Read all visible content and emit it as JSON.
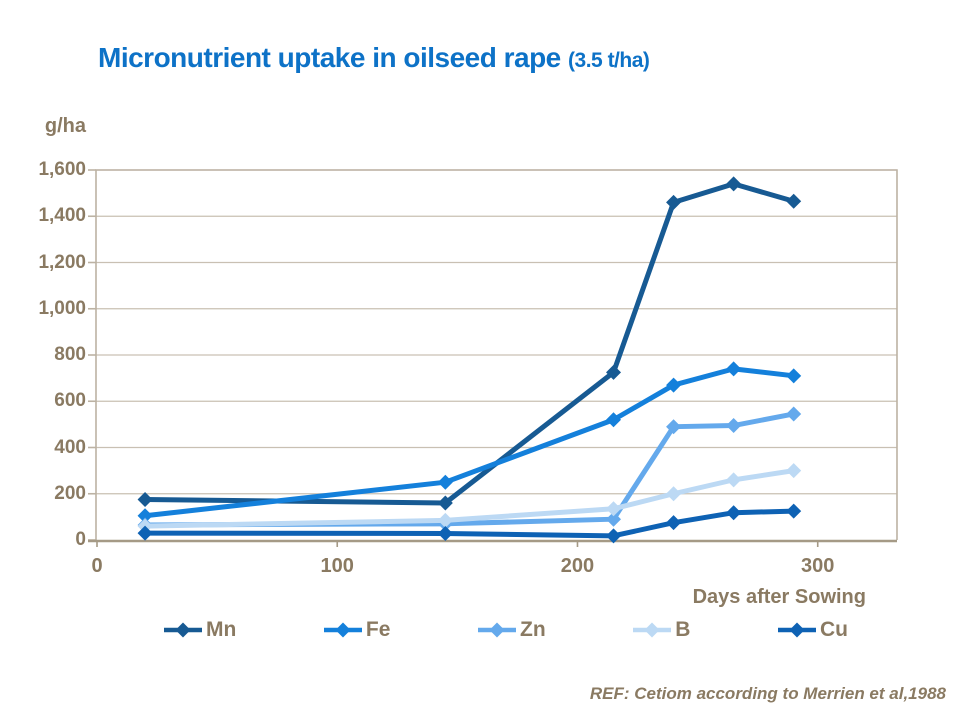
{
  "title": {
    "main": "Micronutrient uptake in oilseed rape",
    "suffix": "(3.5 t/ha)"
  },
  "footnote": "REF: Cetiom according to Merrien et al,1988",
  "chart_data": {
    "type": "line",
    "title": "Micronutrient uptake in oilseed rape (3.5 t/ha)",
    "xlabel": "Days after Sowing",
    "ylabel": "g/ha",
    "x": [
      20,
      145,
      215,
      240,
      265,
      290
    ],
    "series": [
      {
        "name": "Mn",
        "color": "#175a93",
        "values": [
          175,
          160,
          725,
          1460,
          1540,
          1465
        ]
      },
      {
        "name": "Fe",
        "color": "#1480db",
        "values": [
          105,
          250,
          520,
          670,
          740,
          710
        ]
      },
      {
        "name": "Zn",
        "color": "#64a9ec",
        "values": [
          65,
          70,
          90,
          490,
          495,
          545
        ]
      },
      {
        "name": "B",
        "color": "#bcd9f4",
        "values": [
          60,
          85,
          135,
          200,
          260,
          300
        ]
      },
      {
        "name": "Cu",
        "color": "#0e62b4",
        "values": [
          30,
          28,
          18,
          75,
          118,
          125
        ]
      }
    ],
    "ylim": [
      0,
      1600
    ],
    "xlim": [
      0,
      333
    ],
    "yticks": {
      "labels": [
        "0",
        "200",
        "400",
        "600",
        "800",
        "1,000",
        "1,200",
        "1,400",
        "1,600"
      ],
      "values": [
        0,
        200,
        400,
        600,
        800,
        1000,
        1200,
        1400,
        1600
      ]
    },
    "xticks": {
      "labels": [
        "0",
        "100",
        "200",
        "300"
      ],
      "values": [
        0,
        100,
        200,
        300
      ]
    },
    "grid": "horizontal",
    "legend_position": "bottom",
    "marker": "diamond"
  },
  "theme": {
    "title_color": "#0d72c7",
    "axis_text_color": "#8a7a62",
    "grid_color": "#c9c0b3",
    "border_color": "#bcb2a3",
    "baseline_color": "#a59a86",
    "background": "#ffffff"
  }
}
